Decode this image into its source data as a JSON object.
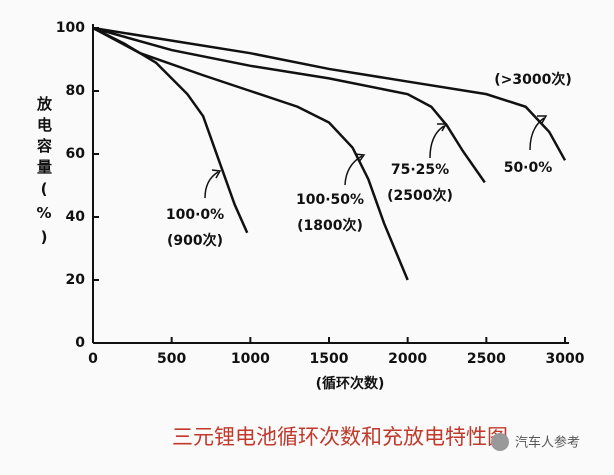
{
  "chart_data": {
    "type": "line",
    "title": "三元锂电池循环次数和充放电特性图",
    "xlabel": "(循环次数)",
    "ylabel": "放电容量(%)",
    "xlim": [
      0,
      3000
    ],
    "xticks": [
      0,
      500,
      1000,
      1500,
      2000,
      2500,
      3000
    ],
    "ylim": [
      0,
      100
    ],
    "yticks": [
      0,
      20,
      40,
      60,
      80,
      100
    ],
    "series": [
      {
        "color": "#111111",
        "x": [
          0,
          200,
          400,
          600,
          700,
          800,
          900,
          980
        ],
        "values": [
          100,
          95,
          89,
          79,
          72,
          58,
          44,
          35
        ]
      },
      {
        "color": "#111111",
        "x": [
          0,
          300,
          700,
          1000,
          1300,
          1500,
          1650,
          1750,
          1850,
          2000
        ],
        "values": [
          100,
          92,
          85,
          80,
          75,
          70,
          62,
          52,
          38,
          20
        ]
      },
      {
        "color": "#111111",
        "x": [
          0,
          500,
          1000,
          1500,
          2000,
          2150,
          2250,
          2350,
          2490
        ],
        "values": [
          100,
          93,
          88,
          84,
          79,
          75,
          69,
          61,
          51
        ]
      },
      {
        "color": "#111111",
        "x": [
          0,
          500,
          1000,
          1500,
          2000,
          2500,
          2750,
          2900,
          3000
        ],
        "values": [
          100,
          96,
          92,
          87,
          83,
          79,
          75,
          67,
          58
        ]
      }
    ],
    "annotations": [
      "100·0%",
      "(900次)",
      "100·50%",
      "(1800次)",
      "75·25%",
      "(2500次)",
      "50·0%",
      "(>3000次)"
    ],
    "watermark": "汽车人参考"
  }
}
